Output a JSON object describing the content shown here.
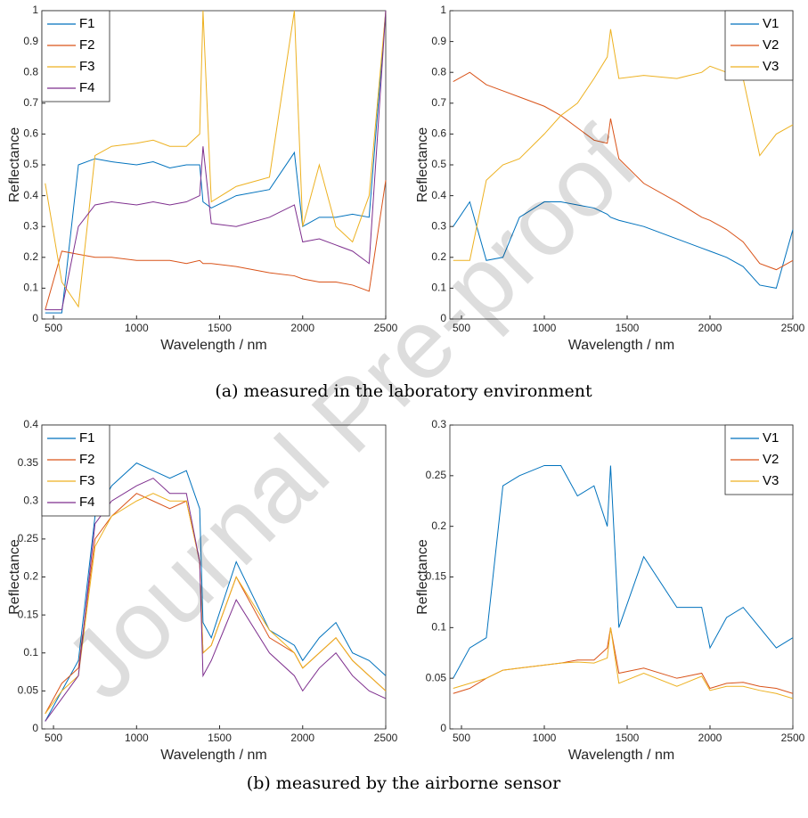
{
  "chart_data": [
    {
      "type": "line",
      "xlabel": "Wavelength / nm",
      "ylabel": "Reflectance",
      "x": [
        450,
        550,
        650,
        750,
        850,
        1000,
        1100,
        1200,
        1300,
        1380,
        1400,
        1450,
        1600,
        1800,
        1950,
        2000,
        2100,
        2200,
        2300,
        2400,
        2500
      ],
      "xlim": [
        430,
        2500
      ],
      "xticks": [
        500,
        1000,
        1500,
        2000,
        2500
      ],
      "ylim": [
        0,
        1
      ],
      "yticks": [
        0,
        0.1,
        0.2,
        0.3,
        0.4,
        0.5,
        0.6,
        0.7,
        0.8,
        0.9,
        1
      ],
      "legend": "top-left",
      "series": [
        {
          "name": "F1",
          "color": "#0072BD",
          "values": [
            0.02,
            0.02,
            0.5,
            0.52,
            0.51,
            0.5,
            0.51,
            0.49,
            0.5,
            0.5,
            0.38,
            0.36,
            0.4,
            0.42,
            0.54,
            0.3,
            0.33,
            0.33,
            0.34,
            0.33,
            1
          ]
        },
        {
          "name": "F2",
          "color": "#D95319",
          "values": [
            0.03,
            0.22,
            0.21,
            0.2,
            0.2,
            0.19,
            0.19,
            0.19,
            0.18,
            0.19,
            0.18,
            0.18,
            0.17,
            0.15,
            0.14,
            0.13,
            0.12,
            0.12,
            0.11,
            0.09,
            0.45
          ]
        },
        {
          "name": "F3",
          "color": "#EDB120",
          "values": [
            0.44,
            0.12,
            0.04,
            0.53,
            0.56,
            0.57,
            0.58,
            0.56,
            0.56,
            0.6,
            1,
            0.38,
            0.43,
            0.46,
            1,
            0.3,
            0.5,
            0.3,
            0.25,
            0.4,
            1
          ]
        },
        {
          "name": "F4",
          "color": "#7E2F8E",
          "values": [
            0.03,
            0.03,
            0.3,
            0.37,
            0.38,
            0.37,
            0.38,
            0.37,
            0.38,
            0.4,
            0.56,
            0.31,
            0.3,
            0.33,
            0.37,
            0.25,
            0.26,
            0.24,
            0.22,
            0.18,
            1
          ]
        }
      ]
    },
    {
      "type": "line",
      "xlabel": "Wavelength / nm",
      "ylabel": "Reflectance",
      "x": [
        450,
        550,
        650,
        750,
        850,
        1000,
        1100,
        1200,
        1300,
        1380,
        1400,
        1450,
        1600,
        1800,
        1950,
        2000,
        2100,
        2200,
        2300,
        2400,
        2500
      ],
      "xlim": [
        430,
        2500
      ],
      "xticks": [
        500,
        1000,
        1500,
        2000,
        2500
      ],
      "ylim": [
        0,
        1
      ],
      "yticks": [
        0,
        0.1,
        0.2,
        0.3,
        0.4,
        0.5,
        0.6,
        0.7,
        0.8,
        0.9,
        1
      ],
      "legend": "top-right",
      "series": [
        {
          "name": "V1",
          "color": "#0072BD",
          "values": [
            0.3,
            0.38,
            0.19,
            0.2,
            0.33,
            0.38,
            0.38,
            0.37,
            0.36,
            0.34,
            0.33,
            0.32,
            0.3,
            0.26,
            0.23,
            0.22,
            0.2,
            0.17,
            0.11,
            0.1,
            0.29
          ]
        },
        {
          "name": "V2",
          "color": "#D95319",
          "values": [
            0.77,
            0.8,
            0.76,
            0.74,
            0.72,
            0.69,
            0.66,
            0.62,
            0.58,
            0.57,
            0.65,
            0.52,
            0.44,
            0.38,
            0.33,
            0.32,
            0.29,
            0.25,
            0.18,
            0.16,
            0.19
          ]
        },
        {
          "name": "V3",
          "color": "#EDB120",
          "values": [
            0.19,
            0.19,
            0.45,
            0.5,
            0.52,
            0.6,
            0.66,
            0.7,
            0.78,
            0.85,
            0.94,
            0.78,
            0.79,
            0.78,
            0.8,
            0.82,
            0.8,
            0.78,
            0.53,
            0.6,
            0.63
          ]
        }
      ]
    },
    {
      "type": "line",
      "xlabel": "Wavelength / nm",
      "ylabel": "Reflectance",
      "x": [
        450,
        550,
        650,
        750,
        850,
        1000,
        1100,
        1200,
        1300,
        1380,
        1400,
        1450,
        1600,
        1800,
        1950,
        2000,
        2100,
        2200,
        2300,
        2400,
        2500
      ],
      "xlim": [
        430,
        2500
      ],
      "xticks": [
        500,
        1000,
        1500,
        2000,
        2500
      ],
      "ylim": [
        0,
        0.4
      ],
      "yticks": [
        0,
        0.05,
        0.1,
        0.15,
        0.2,
        0.25,
        0.3,
        0.35,
        0.4
      ],
      "legend": "top-left",
      "series": [
        {
          "name": "F1",
          "color": "#0072BD",
          "values": [
            0.01,
            0.05,
            0.09,
            0.28,
            0.32,
            0.35,
            0.34,
            0.33,
            0.34,
            0.29,
            0.14,
            0.12,
            0.22,
            0.13,
            0.11,
            0.09,
            0.12,
            0.14,
            0.1,
            0.09,
            0.07
          ]
        },
        {
          "name": "F2",
          "color": "#D95319",
          "values": [
            0.02,
            0.06,
            0.08,
            0.25,
            0.28,
            0.31,
            0.3,
            0.29,
            0.3,
            0.22,
            0.1,
            0.11,
            0.2,
            0.12,
            0.1,
            0.08,
            0.1,
            0.12,
            0.09,
            0.07,
            0.05
          ]
        },
        {
          "name": "F3",
          "color": "#EDB120",
          "values": [
            0.02,
            0.05,
            0.07,
            0.24,
            0.28,
            0.3,
            0.31,
            0.3,
            0.3,
            0.22,
            0.1,
            0.11,
            0.2,
            0.13,
            0.1,
            0.08,
            0.1,
            0.12,
            0.09,
            0.07,
            0.05
          ]
        },
        {
          "name": "F4",
          "color": "#7E2F8E",
          "values": [
            0.01,
            0.04,
            0.07,
            0.27,
            0.3,
            0.32,
            0.33,
            0.31,
            0.31,
            0.22,
            0.07,
            0.09,
            0.17,
            0.1,
            0.07,
            0.05,
            0.08,
            0.1,
            0.07,
            0.05,
            0.04
          ]
        }
      ]
    },
    {
      "type": "line",
      "xlabel": "Wavelength / nm",
      "ylabel": "Reflectance",
      "x": [
        450,
        550,
        650,
        750,
        850,
        1000,
        1100,
        1200,
        1300,
        1380,
        1400,
        1450,
        1600,
        1800,
        1950,
        2000,
        2100,
        2200,
        2300,
        2400,
        2500
      ],
      "xlim": [
        430,
        2500
      ],
      "xticks": [
        500,
        1000,
        1500,
        2000,
        2500
      ],
      "ylim": [
        0,
        0.3
      ],
      "yticks": [
        0,
        0.05,
        0.1,
        0.15,
        0.2,
        0.25,
        0.3
      ],
      "legend": "top-right",
      "series": [
        {
          "name": "V1",
          "color": "#0072BD",
          "values": [
            0.05,
            0.08,
            0.09,
            0.24,
            0.25,
            0.26,
            0.26,
            0.23,
            0.24,
            0.2,
            0.26,
            0.1,
            0.17,
            0.12,
            0.12,
            0.08,
            0.11,
            0.12,
            0.1,
            0.08,
            0.09
          ]
        },
        {
          "name": "V2",
          "color": "#D95319",
          "values": [
            0.035,
            0.04,
            0.05,
            0.058,
            0.06,
            0.063,
            0.065,
            0.068,
            0.068,
            0.08,
            0.1,
            0.055,
            0.06,
            0.05,
            0.055,
            0.04,
            0.045,
            0.046,
            0.042,
            0.04,
            0.035
          ]
        },
        {
          "name": "V3",
          "color": "#EDB120",
          "values": [
            0.04,
            0.045,
            0.05,
            0.058,
            0.06,
            0.063,
            0.065,
            0.066,
            0.065,
            0.07,
            0.1,
            0.045,
            0.055,
            0.042,
            0.052,
            0.038,
            0.042,
            0.042,
            0.038,
            0.035,
            0.03
          ]
        }
      ]
    }
  ],
  "captions": [
    "(a) measured in the laboratory environment",
    "(b) measured by the airborne sensor"
  ],
  "watermark": "Journal Pre-proof"
}
